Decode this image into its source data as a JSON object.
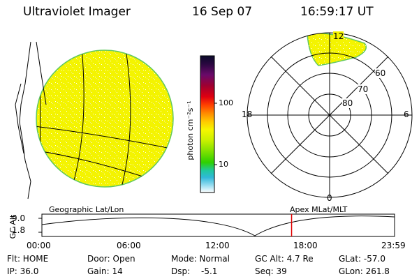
{
  "header": {
    "instrument": "Ultraviolet Imager",
    "date": "16 Sep 07",
    "time": "16:59:17 UT"
  },
  "colorbar": {
    "unit_label": "photon cm⁻²s⁻¹",
    "tick_labels": [
      "100",
      "10"
    ],
    "colors": [
      "#0a0a2a",
      "#2a0840",
      "#6a0a6a",
      "#a00030",
      "#e00010",
      "#ff4000",
      "#ff8a00",
      "#ffc800",
      "#f6f600",
      "#c8f000",
      "#7ee000",
      "#2ed000",
      "#20c8a0",
      "#30b8d8",
      "#8ad8ee",
      "#d0ecf4",
      "#ffffff"
    ]
  },
  "polar": {
    "mlt_labels": {
      "top": "12",
      "left": "18",
      "right": "6",
      "bottom": "0"
    },
    "lat_labels": [
      "60",
      "70",
      "80"
    ]
  },
  "timeline": {
    "left_label": "Geographic Lat/Lon",
    "right_label": "Apex MLat/MLT",
    "axis_title": "GC Alt",
    "y_ticks": [
      "9.0",
      "1.8"
    ],
    "x_ticks": [
      "00:00",
      "06:00",
      "12:00",
      "18:00",
      "23:59"
    ],
    "current_time_fraction": 0.708
  },
  "info": {
    "flt": "Flt: HOME",
    "ip": "IP: 36.0",
    "door": "Door: Open",
    "gain": "Gain: 14",
    "mode": "Mode: Normal",
    "dsp_label": "Dsp:",
    "dsp_value": "-5.1",
    "gcalt": "GC Alt: 4.7 Re",
    "seq": "Seq: 39",
    "glat": "GLat: -57.0",
    "glon": "GLon: 261.8"
  },
  "colors": {
    "image_fill": "#f4f400",
    "image_edge": "#60c860",
    "marker": "#e00000"
  }
}
